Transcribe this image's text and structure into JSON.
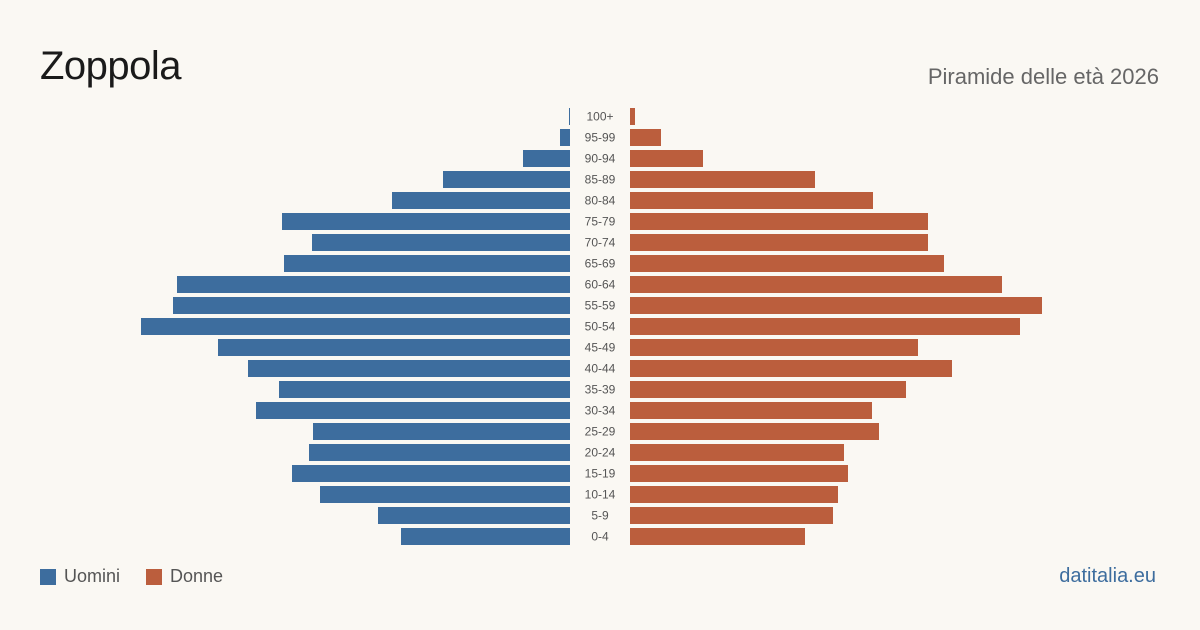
{
  "title": "Zoppola",
  "subtitle": "Piramide delle età 2026",
  "source": "datitalia.eu",
  "colors": {
    "men": "#3d6d9e",
    "women": "#bb5e3d"
  },
  "chart_data": {
    "type": "bar",
    "orientation": "horizontal-diverging",
    "categories": [
      "100+",
      "95-99",
      "90-94",
      "85-89",
      "80-84",
      "75-79",
      "70-74",
      "65-69",
      "60-64",
      "55-59",
      "50-54",
      "45-49",
      "40-44",
      "35-39",
      "30-34",
      "25-29",
      "20-24",
      "15-19",
      "10-14",
      "5-9",
      "0-4"
    ],
    "series": [
      {
        "name": "Uomini",
        "values": [
          1,
          10,
          47,
          127,
          178,
          288,
          258,
          286,
          393,
          397,
          429,
          352,
          322,
          291,
          314,
          257,
          261,
          278,
          250,
          192,
          169
        ]
      },
      {
        "name": "Donne",
        "values": [
          5,
          31,
          73,
          185,
          243,
          298,
          298,
          314,
          372,
          412,
          390,
          288,
          322,
          276,
          242,
          249,
          214,
          218,
          208,
          203,
          175
        ]
      }
    ],
    "legend_position": "bottom-left",
    "grid": false
  }
}
